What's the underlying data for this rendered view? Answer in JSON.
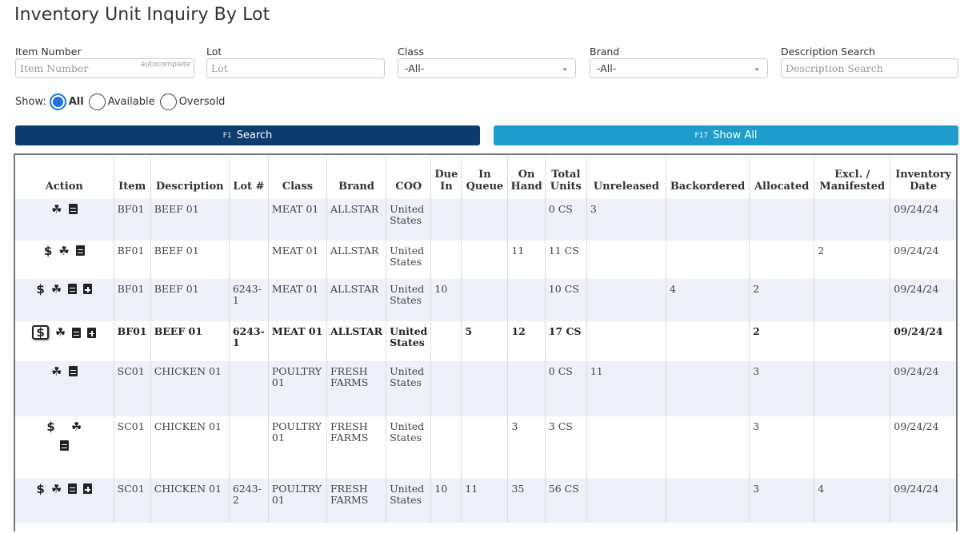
{
  "page": {
    "title": "Inventory Unit Inquiry By Lot"
  },
  "filters": {
    "item_number": {
      "label": "Item Number",
      "placeholder": "Item Number",
      "tag": "autocomplete"
    },
    "lot": {
      "label": "Lot",
      "placeholder": "Lot"
    },
    "class": {
      "label": "Class",
      "value": "-All-"
    },
    "brand": {
      "label": "Brand",
      "value": "-All-"
    },
    "description_search": {
      "label": "Description Search",
      "placeholder": "Description Search"
    }
  },
  "show": {
    "label": "Show:",
    "options": [
      {
        "label": "All",
        "checked": true
      },
      {
        "label": "Available",
        "checked": false
      },
      {
        "label": "Oversold",
        "checked": false
      }
    ]
  },
  "buttons": {
    "search": {
      "fkey": "F1",
      "label": "Search",
      "color": "#0d3c6e"
    },
    "show_all": {
      "fkey": "F17",
      "label": "Show All",
      "color": "#1e9ccc"
    }
  },
  "table": {
    "headers": {
      "action": "Action",
      "item": "Item",
      "description": "Description",
      "lot": "Lot #",
      "class": "Class",
      "brand": "Brand",
      "coo": "COO",
      "due_in": "Due In",
      "in_queue": "In Queue",
      "on_hand": "On Hand",
      "total_units": "Total Units",
      "unreleased": "Unreleased",
      "backordered": "Backordered",
      "allocated": "Allocated",
      "excl_manifested": "Excl. / Manifested",
      "inventory_date": "Inventory Date"
    },
    "rows": [
      {
        "item": "BF01",
        "description": "BEEF 01",
        "lot": "",
        "class": "MEAT 01",
        "brand": "ALLSTAR",
        "coo": "United States",
        "due_in": "",
        "in_queue": "",
        "on_hand": "",
        "total_units": "0 CS",
        "unreleased": "3",
        "backordered": "",
        "allocated": "",
        "excl_manifested": "",
        "inventory_date": "09/24/24"
      },
      {
        "item": "BF01",
        "description": "BEEF 01",
        "lot": "",
        "class": "MEAT 01",
        "brand": "ALLSTAR",
        "coo": "United States",
        "due_in": "",
        "in_queue": "",
        "on_hand": "11",
        "total_units": "11 CS",
        "unreleased": "",
        "backordered": "",
        "allocated": "",
        "excl_manifested": "2",
        "inventory_date": "09/24/24"
      },
      {
        "item": "BF01",
        "description": "BEEF 01",
        "lot": "6243-1",
        "class": "MEAT 01",
        "brand": "ALLSTAR",
        "coo": "United States",
        "due_in": "10",
        "in_queue": "",
        "on_hand": "",
        "total_units": "10 CS",
        "unreleased": "",
        "backordered": "4",
        "allocated": "2",
        "excl_manifested": "",
        "inventory_date": "09/24/24"
      },
      {
        "item": "BF01",
        "description": "BEEF 01",
        "lot": "6243-1",
        "class": "MEAT 01",
        "brand": "ALLSTAR",
        "coo": "United States",
        "due_in": "",
        "in_queue": "5",
        "on_hand": "12",
        "total_units": "17 CS",
        "unreleased": "",
        "backordered": "",
        "allocated": "2",
        "excl_manifested": "",
        "inventory_date": "09/24/24"
      },
      {
        "item": "SC01",
        "description": "CHICKEN 01",
        "lot": "",
        "class": "POULTRY 01",
        "brand": "FRESH FARMS",
        "coo": "United States",
        "due_in": "",
        "in_queue": "",
        "on_hand": "",
        "total_units": "0 CS",
        "unreleased": "11",
        "backordered": "",
        "allocated": "3",
        "excl_manifested": "",
        "inventory_date": "09/24/24"
      },
      {
        "item": "SC01",
        "description": "CHICKEN 01",
        "lot": "",
        "class": "POULTRY 01",
        "brand": "FRESH FARMS",
        "coo": "United States",
        "due_in": "",
        "in_queue": "",
        "on_hand": "3",
        "total_units": "3 CS",
        "unreleased": "",
        "backordered": "",
        "allocated": "3",
        "excl_manifested": "",
        "inventory_date": "09/24/24"
      },
      {
        "item": "SC01",
        "description": "CHICKEN 01",
        "lot": "6243-2",
        "class": "POULTRY 01",
        "brand": "FRESH FARMS",
        "coo": "United States",
        "due_in": "10",
        "in_queue": "11",
        "on_hand": "35",
        "total_units": "56 CS",
        "unreleased": "",
        "backordered": "",
        "allocated": "3",
        "excl_manifested": "4",
        "inventory_date": "09/24/24"
      }
    ],
    "action_icons": {
      "dollar": "$",
      "cubes": "cubes-icon",
      "calendar": "calendar-icon",
      "calendar_plus": "calendar-plus-icon"
    }
  }
}
